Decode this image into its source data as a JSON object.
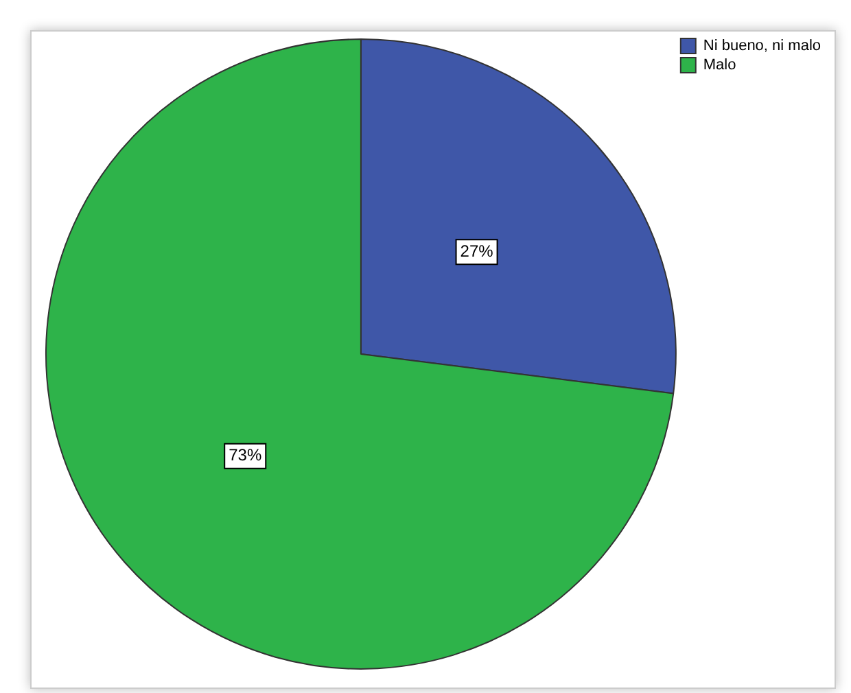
{
  "chart_data": {
    "type": "pie",
    "categories": [
      "Ni bueno, ni malo",
      "Malo"
    ],
    "values": [
      27,
      73
    ],
    "colors": [
      "#3f57a8",
      "#2eb34a"
    ],
    "legend": "top right",
    "value_labels": [
      "27%",
      "73%"
    ]
  }
}
